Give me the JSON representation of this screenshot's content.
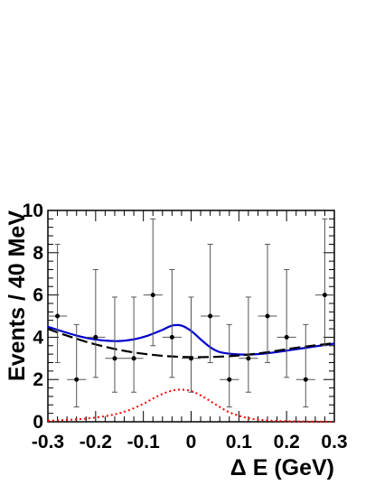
{
  "chart_data": {
    "type": "scatter",
    "xlabel": "Δ E (GeV)",
    "ylabel": "Events / 40 MeV",
    "xlim": [
      -0.3,
      0.3
    ],
    "ylim": [
      0,
      10
    ],
    "x_ticks": [
      "-0.3",
      "-0.2",
      "-0.1",
      "0",
      "0.1",
      "0.2",
      "0.3"
    ],
    "y_ticks": [
      "0",
      "2",
      "4",
      "6",
      "8",
      "10"
    ],
    "grid": false,
    "series": [
      {
        "kind": "data-points-with-errors",
        "color": "#000000",
        "points": [
          {
            "x": -0.28,
            "y": 5,
            "err_lo": 2.2,
            "err_hi": 3.4
          },
          {
            "x": -0.24,
            "y": 2,
            "err_lo": 1.3,
            "err_hi": 2.6
          },
          {
            "x": -0.2,
            "y": 4,
            "err_lo": 1.9,
            "err_hi": 3.2
          },
          {
            "x": -0.16,
            "y": 3,
            "err_lo": 1.6,
            "err_hi": 2.9
          },
          {
            "x": -0.12,
            "y": 3,
            "err_lo": 1.6,
            "err_hi": 2.9
          },
          {
            "x": -0.08,
            "y": 6,
            "err_lo": 2.4,
            "err_hi": 3.6
          },
          {
            "x": -0.04,
            "y": 4,
            "err_lo": 1.9,
            "err_hi": 3.2
          },
          {
            "x": 0.0,
            "y": 3,
            "err_lo": 1.6,
            "err_hi": 2.9
          },
          {
            "x": 0.04,
            "y": 5,
            "err_lo": 2.2,
            "err_hi": 3.4
          },
          {
            "x": 0.08,
            "y": 2,
            "err_lo": 1.3,
            "err_hi": 2.6
          },
          {
            "x": 0.12,
            "y": 3,
            "err_lo": 1.6,
            "err_hi": 2.9
          },
          {
            "x": 0.16,
            "y": 5,
            "err_lo": 2.2,
            "err_hi": 3.4
          },
          {
            "x": 0.2,
            "y": 4,
            "err_lo": 1.9,
            "err_hi": 3.2
          },
          {
            "x": 0.24,
            "y": 2,
            "err_lo": 1.3,
            "err_hi": 2.6
          },
          {
            "x": 0.28,
            "y": 6,
            "err_lo": 2.4,
            "err_hi": 3.6
          }
        ],
        "x_half_width": 0.02
      },
      {
        "kind": "total-fit-curve",
        "color": "#0000cc",
        "style": "solid",
        "x": [
          -0.3,
          -0.27,
          -0.24,
          -0.21,
          -0.18,
          -0.15,
          -0.12,
          -0.09,
          -0.06,
          -0.04,
          -0.02,
          0.0,
          0.02,
          0.04,
          0.06,
          0.09,
          0.12,
          0.15,
          0.18,
          0.21,
          0.24,
          0.27,
          0.3
        ],
        "y": [
          4.5,
          4.28,
          4.08,
          3.93,
          3.84,
          3.82,
          3.9,
          4.08,
          4.35,
          4.55,
          4.55,
          4.3,
          3.9,
          3.53,
          3.3,
          3.2,
          3.18,
          3.22,
          3.3,
          3.4,
          3.5,
          3.6,
          3.7
        ]
      },
      {
        "kind": "background-curve",
        "color": "#000000",
        "style": "dashed",
        "x": [
          -0.3,
          -0.27,
          -0.24,
          -0.21,
          -0.18,
          -0.15,
          -0.12,
          -0.09,
          -0.06,
          -0.03,
          0.0,
          0.03,
          0.06,
          0.09,
          0.12,
          0.15,
          0.18,
          0.21,
          0.24,
          0.27,
          0.3
        ],
        "y": [
          4.4,
          4.15,
          3.93,
          3.72,
          3.55,
          3.4,
          3.28,
          3.19,
          3.12,
          3.08,
          3.06,
          3.06,
          3.08,
          3.12,
          3.18,
          3.26,
          3.36,
          3.47,
          3.56,
          3.64,
          3.72
        ]
      },
      {
        "kind": "signal-curve",
        "color": "#ff0000",
        "style": "dotted",
        "x": [
          -0.3,
          -0.25,
          -0.2,
          -0.16,
          -0.13,
          -0.1,
          -0.08,
          -0.06,
          -0.04,
          -0.02,
          0.0,
          0.02,
          0.04,
          0.06,
          0.08,
          0.11,
          0.14,
          0.18,
          0.22,
          0.26,
          0.3
        ],
        "y": [
          0.05,
          0.1,
          0.2,
          0.35,
          0.55,
          0.85,
          1.1,
          1.32,
          1.47,
          1.52,
          1.45,
          1.25,
          0.98,
          0.7,
          0.45,
          0.22,
          0.1,
          0.04,
          0.02,
          0.01,
          0.0
        ]
      }
    ]
  }
}
